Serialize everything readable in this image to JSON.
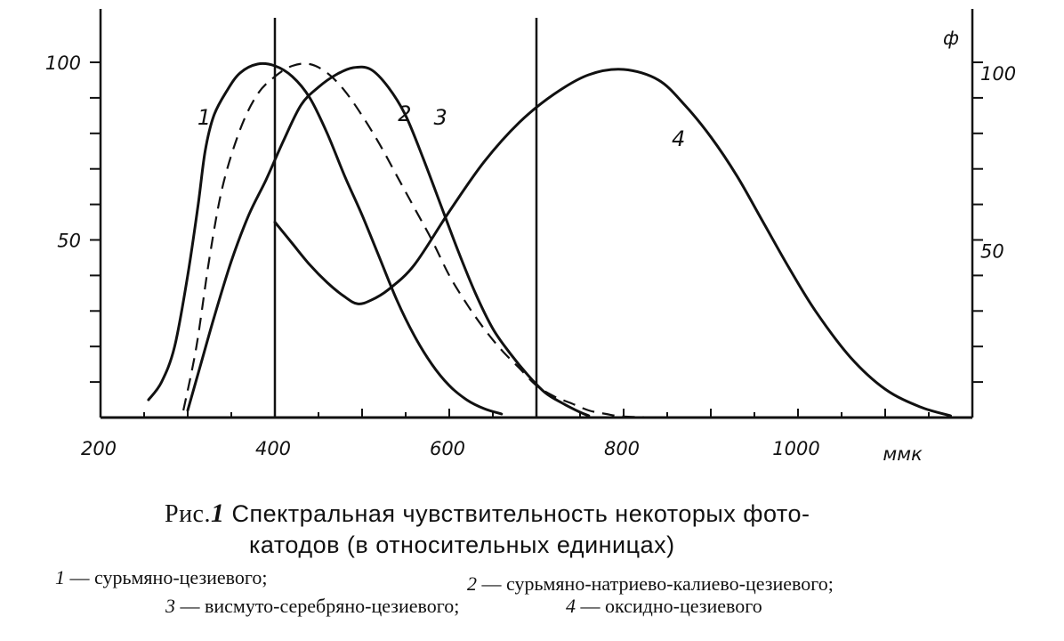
{
  "chart_data": {
    "type": "line",
    "x": {
      "range": [
        200,
        1200
      ],
      "ticks": [
        200,
        400,
        600,
        800,
        1000
      ],
      "tick_labels": [
        "200",
        "400",
        "600",
        "800",
        "1000"
      ],
      "unit": "ммк"
    },
    "y_left": {
      "range": [
        0,
        110
      ],
      "ticks": [
        0,
        10,
        20,
        30,
        40,
        50,
        60,
        70,
        80,
        90,
        100
      ],
      "labeled_ticks": [
        50,
        100
      ],
      "tick_labels": [
        "50",
        "100"
      ]
    },
    "y_right": {
      "symbol": "ф",
      "range": [
        0,
        110
      ],
      "ticks": [
        0,
        10,
        20,
        30,
        40,
        50,
        60,
        70,
        80,
        90,
        100
      ],
      "labeled_ticks": [
        50,
        100
      ],
      "tick_labels": [
        "50",
        "100"
      ]
    },
    "vertical_lines": [
      400,
      700
    ],
    "grid": false,
    "series": [
      {
        "name": "1",
        "style": "solid",
        "points": [
          [
            255,
            5
          ],
          [
            270,
            10
          ],
          [
            285,
            20
          ],
          [
            300,
            40
          ],
          [
            312,
            60
          ],
          [
            320,
            75
          ],
          [
            330,
            85
          ],
          [
            345,
            92
          ],
          [
            360,
            97
          ],
          [
            380,
            99.5
          ],
          [
            400,
            99
          ],
          [
            420,
            96
          ],
          [
            440,
            90
          ],
          [
            460,
            80
          ],
          [
            480,
            68
          ],
          [
            500,
            57
          ],
          [
            520,
            45
          ],
          [
            540,
            33
          ],
          [
            560,
            23
          ],
          [
            580,
            15
          ],
          [
            600,
            9
          ],
          [
            620,
            5
          ],
          [
            640,
            2.5
          ],
          [
            660,
            1
          ]
        ]
      },
      {
        "name": "2",
        "style": "dashed",
        "points": [
          [
            295,
            2
          ],
          [
            310,
            20
          ],
          [
            325,
            45
          ],
          [
            340,
            65
          ],
          [
            360,
            81
          ],
          [
            380,
            91
          ],
          [
            400,
            96
          ],
          [
            420,
            99
          ],
          [
            440,
            99.5
          ],
          [
            460,
            97
          ],
          [
            480,
            92
          ],
          [
            500,
            85
          ],
          [
            520,
            77
          ],
          [
            540,
            68
          ],
          [
            560,
            59
          ],
          [
            580,
            50
          ],
          [
            600,
            40
          ],
          [
            620,
            32
          ],
          [
            640,
            25
          ],
          [
            660,
            19
          ],
          [
            680,
            14
          ],
          [
            700,
            9
          ],
          [
            720,
            6
          ],
          [
            740,
            4
          ],
          [
            760,
            2
          ],
          [
            780,
            1
          ],
          [
            800,
            0.3
          ],
          [
            850,
            0
          ]
        ]
      },
      {
        "name": "3",
        "style": "solid",
        "points": [
          [
            300,
            2
          ],
          [
            315,
            15
          ],
          [
            330,
            28
          ],
          [
            350,
            44
          ],
          [
            370,
            57
          ],
          [
            390,
            67
          ],
          [
            410,
            78
          ],
          [
            430,
            88
          ],
          [
            450,
            93
          ],
          [
            470,
            96.5
          ],
          [
            490,
            98.5
          ],
          [
            510,
            98
          ],
          [
            530,
            93
          ],
          [
            550,
            85
          ],
          [
            570,
            73
          ],
          [
            590,
            60
          ],
          [
            610,
            47
          ],
          [
            630,
            35
          ],
          [
            650,
            25
          ],
          [
            670,
            18
          ],
          [
            690,
            12
          ],
          [
            710,
            7
          ],
          [
            730,
            4
          ],
          [
            750,
            1.5
          ],
          [
            760,
            0.5
          ]
        ]
      },
      {
        "name": "4",
        "style": "solid",
        "points": [
          [
            400,
            55
          ],
          [
            420,
            49
          ],
          [
            440,
            43
          ],
          [
            460,
            38
          ],
          [
            480,
            34
          ],
          [
            495,
            32
          ],
          [
            510,
            33
          ],
          [
            530,
            36
          ],
          [
            560,
            43
          ],
          [
            600,
            58
          ],
          [
            640,
            72
          ],
          [
            680,
            83
          ],
          [
            720,
            91
          ],
          [
            760,
            96.5
          ],
          [
            800,
            98
          ],
          [
            840,
            95
          ],
          [
            870,
            88
          ],
          [
            900,
            79
          ],
          [
            930,
            68
          ],
          [
            960,
            55
          ],
          [
            990,
            42
          ],
          [
            1020,
            30
          ],
          [
            1060,
            17
          ],
          [
            1100,
            8
          ],
          [
            1140,
            3
          ],
          [
            1175,
            0.5
          ]
        ]
      }
    ],
    "curve_labels": [
      {
        "text": "1",
        "x": 325,
        "y": 83
      },
      {
        "text": "2",
        "x": 555,
        "y": 84
      },
      {
        "text": "3",
        "x": 596,
        "y": 83
      },
      {
        "text": "4",
        "x": 869,
        "y": 77
      }
    ]
  },
  "caption": {
    "prefix": "Рис.",
    "figure_number": "1",
    "line1": "Спектральная чувствительность некоторых фото-",
    "line2": "катодов (в относительных единицах)"
  },
  "legend": {
    "items": [
      {
        "num": "1",
        "text": "— сурьмяно-цезиевого;"
      },
      {
        "num": "2",
        "text": "— сурьмяно-натриево-калиево-цезиевого;"
      },
      {
        "num": "3",
        "text": "— висмуто-серебряно-цезиевого;"
      },
      {
        "num": "4",
        "text": "— оксидно-цезиевого"
      }
    ]
  }
}
